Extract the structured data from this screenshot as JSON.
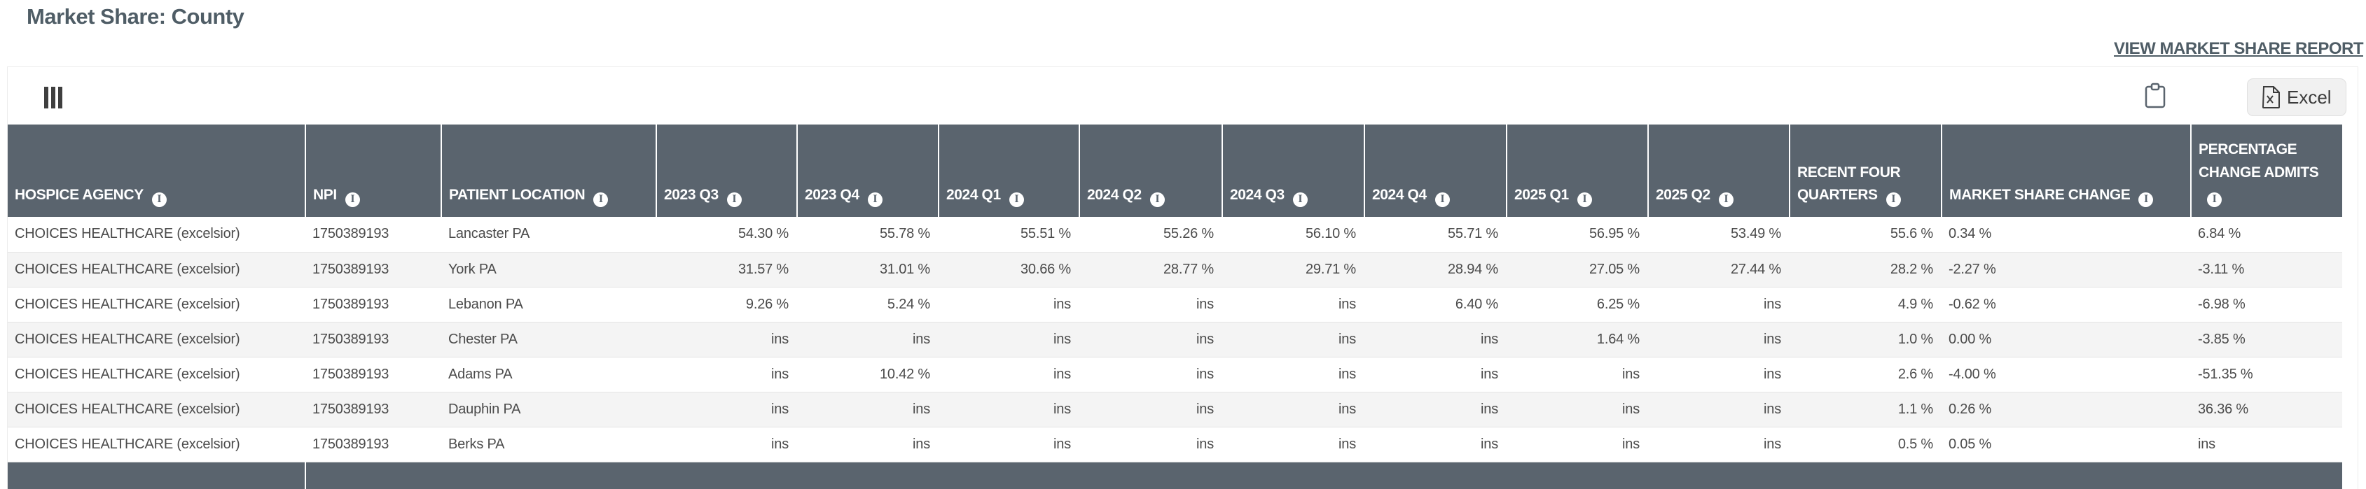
{
  "page": {
    "title": "Market Share: County"
  },
  "header": {
    "view_report_link": "VIEW MARKET SHARE REPORT"
  },
  "toolbar": {
    "excel_button_label": "Excel",
    "icons": [
      "columns-icon",
      "clipboard-icon",
      "excel-file-icon"
    ]
  },
  "colors": {
    "header_bg": "#5a646e",
    "title_text": "#4f5d66",
    "row_alt_bg": "#f4f4f4",
    "body_text": "#4b4b4b"
  },
  "table": {
    "info_icon_glyph": "i",
    "columns": [
      {
        "label": "HOSPICE AGENCY",
        "info": true,
        "align": "left"
      },
      {
        "label": "NPI",
        "info": true,
        "align": "left"
      },
      {
        "label": "PATIENT LOCATION",
        "info": true,
        "align": "left"
      },
      {
        "label": "2023 Q3",
        "info": true,
        "align": "right"
      },
      {
        "label": "2023 Q4",
        "info": true,
        "align": "right"
      },
      {
        "label": "2024 Q1",
        "info": true,
        "align": "right"
      },
      {
        "label": "2024 Q2",
        "info": true,
        "align": "right"
      },
      {
        "label": "2024 Q3",
        "info": true,
        "align": "right"
      },
      {
        "label": "2024 Q4",
        "info": true,
        "align": "right"
      },
      {
        "label": "2025 Q1",
        "info": true,
        "align": "right"
      },
      {
        "label": "2025 Q2",
        "info": true,
        "align": "right"
      },
      {
        "label": "RECENT FOUR QUARTERS",
        "info": true,
        "align": "right"
      },
      {
        "label": "MARKET SHARE CHANGE",
        "info": true,
        "align": "left"
      },
      {
        "label": "PERCENTAGE CHANGE ADMITS",
        "info": true,
        "align": "left"
      }
    ],
    "rows": [
      {
        "cells": [
          "CHOICES HEALTHCARE (excelsior)",
          "1750389193",
          "Lancaster PA",
          "54.30 %",
          "55.78 %",
          "55.51 %",
          "55.26 %",
          "56.10 %",
          "55.71 %",
          "56.95 %",
          "53.49 %",
          "55.6 %",
          "0.34 %",
          "6.84 %"
        ]
      },
      {
        "cells": [
          "CHOICES HEALTHCARE (excelsior)",
          "1750389193",
          "York PA",
          "31.57 %",
          "31.01 %",
          "30.66 %",
          "28.77 %",
          "29.71 %",
          "28.94 %",
          "27.05 %",
          "27.44 %",
          "28.2 %",
          "-2.27 %",
          "-3.11 %"
        ]
      },
      {
        "cells": [
          "CHOICES HEALTHCARE (excelsior)",
          "1750389193",
          "Lebanon PA",
          "9.26 %",
          "5.24 %",
          "ins",
          "ins",
          "ins",
          "6.40 %",
          "6.25 %",
          "ins",
          "4.9 %",
          "-0.62 %",
          "-6.98 %"
        ]
      },
      {
        "cells": [
          "CHOICES HEALTHCARE (excelsior)",
          "1750389193",
          "Chester PA",
          "ins",
          "ins",
          "ins",
          "ins",
          "ins",
          "ins",
          "1.64 %",
          "ins",
          "1.0 %",
          "0.00 %",
          "-3.85 %"
        ]
      },
      {
        "cells": [
          "CHOICES HEALTHCARE (excelsior)",
          "1750389193",
          "Adams PA",
          "ins",
          "10.42 %",
          "ins",
          "ins",
          "ins",
          "ins",
          "ins",
          "ins",
          "2.6 %",
          "-4.00 %",
          "-51.35 %"
        ]
      },
      {
        "cells": [
          "CHOICES HEALTHCARE (excelsior)",
          "1750389193",
          "Dauphin PA",
          "ins",
          "ins",
          "ins",
          "ins",
          "ins",
          "ins",
          "ins",
          "ins",
          "1.1 %",
          "0.26 %",
          "36.36 %"
        ]
      },
      {
        "cells": [
          "CHOICES HEALTHCARE (excelsior)",
          "1750389193",
          "Berks PA",
          "ins",
          "ins",
          "ins",
          "ins",
          "ins",
          "ins",
          "ins",
          "ins",
          "0.5 %",
          "0.05 %",
          "ins"
        ]
      }
    ]
  }
}
